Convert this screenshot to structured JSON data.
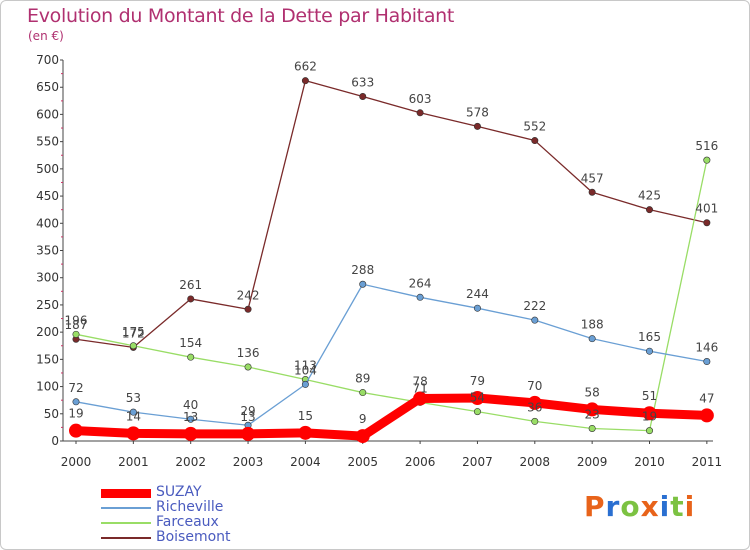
{
  "chart_data": {
    "type": "line",
    "title": "Evolution du Montant de la Dette par Habitant",
    "subtitle": "(en €)",
    "x": [
      "2000",
      "2001",
      "2002",
      "2003",
      "2004",
      "2005",
      "2006",
      "2007",
      "2008",
      "2009",
      "2010",
      "2011"
    ],
    "ylim": [
      0,
      700
    ],
    "yticks": [
      "0",
      "50",
      "100",
      "150",
      "200",
      "250",
      "300",
      "350",
      "400",
      "450",
      "500",
      "550",
      "600",
      "650",
      "700"
    ],
    "grid": false,
    "legend_position": "bottom-left",
    "series": [
      {
        "name": "SUZAY",
        "color": "#ff0000",
        "values": [
          19,
          14,
          13,
          13,
          15,
          9,
          78,
          79,
          70,
          58,
          51,
          47
        ]
      },
      {
        "name": "Richeville",
        "color": "#6a9fd4",
        "values": [
          72,
          53,
          40,
          29,
          104,
          288,
          264,
          244,
          222,
          188,
          165,
          146
        ]
      },
      {
        "name": "Farceaux",
        "color": "#99dd66",
        "values": [
          196,
          175,
          154,
          136,
          113,
          89,
          71,
          54,
          36,
          23,
          19,
          516
        ]
      },
      {
        "name": "Boisemont",
        "color": "#7a2a2a",
        "values": [
          187,
          172,
          261,
          242,
          662,
          633,
          603,
          578,
          552,
          457,
          425,
          401
        ]
      }
    ]
  },
  "brand": {
    "name": "Proxiti",
    "letters": [
      "P",
      "r",
      "o",
      "x",
      "i",
      "t",
      "i"
    ],
    "colors": [
      "#e8631a",
      "#2a6fd1",
      "#7cc242",
      "#e8631a",
      "#2a6fd1",
      "#7cc242",
      "#e8631a"
    ]
  }
}
